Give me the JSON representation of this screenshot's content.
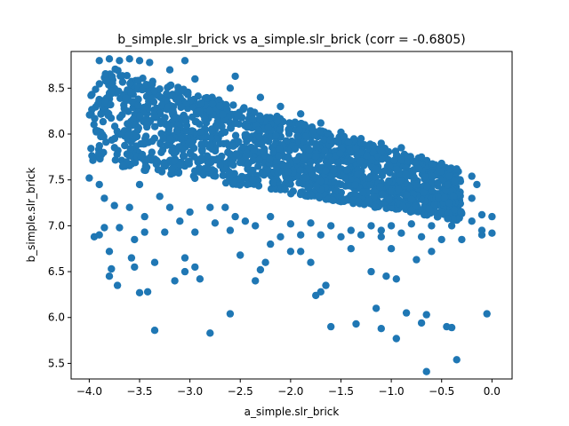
{
  "chart_data": {
    "type": "scatter",
    "title": "b_simple.slr_brick vs a_simple.slr_brick (corr = -0.6805)",
    "xlabel": "a_simple.slr_brick",
    "ylabel": "b_simple.slr_brick",
    "xlim": [
      -4.18,
      0.2
    ],
    "ylim": [
      5.33,
      8.9
    ],
    "xticks": [
      -4.0,
      -3.5,
      -3.0,
      -2.5,
      -2.0,
      -1.5,
      -1.0,
      -0.5,
      0.0
    ],
    "xtick_labels": [
      "−4.0",
      "−3.5",
      "−3.0",
      "−2.5",
      "−2.0",
      "−1.5",
      "−1.0",
      "−0.5",
      "0.0"
    ],
    "yticks": [
      5.5,
      6.0,
      6.5,
      7.0,
      7.5,
      8.0,
      8.5
    ],
    "ytick_labels": [
      "5.5",
      "6.0",
      "6.5",
      "7.0",
      "7.5",
      "8.0",
      "8.5"
    ],
    "grid": false,
    "marker_color": "#1f77b4",
    "correlation": -0.6805,
    "cluster": {
      "x_range": [
        -4.0,
        -0.3
      ],
      "upper_line": {
        "x": [
          -4.0,
          -0.3
        ],
        "y": [
          8.8,
          7.6
        ]
      },
      "lower_line": {
        "x": [
          -4.0,
          -0.3
        ],
        "y": [
          7.7,
          7.05
        ]
      }
    },
    "series": [
      {
        "points": [
          [
            -3.9,
            8.8
          ],
          [
            -3.8,
            8.82
          ],
          [
            -3.7,
            8.8
          ],
          [
            -3.6,
            8.82
          ],
          [
            -3.5,
            8.8
          ],
          [
            -3.4,
            8.78
          ],
          [
            -3.05,
            8.8
          ],
          [
            -3.2,
            8.7
          ],
          [
            -2.95,
            8.6
          ],
          [
            -2.55,
            8.63
          ],
          [
            -2.6,
            8.5
          ],
          [
            -2.3,
            8.4
          ],
          [
            -2.1,
            8.3
          ],
          [
            -1.9,
            8.22
          ],
          [
            -1.7,
            8.12
          ],
          [
            -1.5,
            8.02
          ],
          [
            -1.3,
            7.95
          ],
          [
            -1.1,
            7.9
          ],
          [
            -0.9,
            7.85
          ],
          [
            -0.7,
            7.75
          ],
          [
            -0.5,
            7.68
          ],
          [
            -0.35,
            7.62
          ],
          [
            -0.2,
            7.54
          ],
          [
            -4.0,
            7.52
          ],
          [
            -3.9,
            7.45
          ],
          [
            -3.85,
            7.3
          ],
          [
            -3.75,
            7.22
          ],
          [
            -3.6,
            7.2
          ],
          [
            -3.5,
            7.45
          ],
          [
            -3.45,
            7.1
          ],
          [
            -3.3,
            7.32
          ],
          [
            -3.2,
            7.2
          ],
          [
            -3.1,
            7.05
          ],
          [
            -3.0,
            7.15
          ],
          [
            -2.95,
            6.93
          ],
          [
            -2.8,
            7.2
          ],
          [
            -2.75,
            7.03
          ],
          [
            -2.65,
            7.2
          ],
          [
            -2.55,
            7.1
          ],
          [
            -2.45,
            7.05
          ],
          [
            -2.35,
            7.0
          ],
          [
            -2.2,
            7.1
          ],
          [
            -2.1,
            6.88
          ],
          [
            -2.0,
            7.02
          ],
          [
            -1.9,
            6.9
          ],
          [
            -1.8,
            7.03
          ],
          [
            -1.7,
            6.9
          ],
          [
            -1.6,
            7.0
          ],
          [
            -1.5,
            6.88
          ],
          [
            -1.4,
            6.95
          ],
          [
            -1.3,
            6.9
          ],
          [
            -1.2,
            7.0
          ],
          [
            -1.1,
            6.88
          ],
          [
            -1.0,
            7.0
          ],
          [
            -0.9,
            6.92
          ],
          [
            -0.8,
            7.02
          ],
          [
            -0.7,
            6.88
          ],
          [
            -0.6,
            7.0
          ],
          [
            -0.5,
            6.85
          ],
          [
            -0.4,
            7.0
          ],
          [
            -0.3,
            6.85
          ],
          [
            -0.2,
            7.05
          ],
          [
            -0.1,
            7.12
          ],
          [
            0.0,
            7.1
          ],
          [
            -0.1,
            6.95
          ],
          [
            -0.1,
            6.9
          ],
          [
            0.0,
            6.92
          ],
          [
            -0.2,
            7.3
          ],
          [
            -0.15,
            7.45
          ],
          [
            -3.9,
            6.9
          ],
          [
            -3.85,
            6.98
          ],
          [
            -3.8,
            6.72
          ],
          [
            -3.78,
            6.53
          ],
          [
            -3.8,
            6.45
          ],
          [
            -3.72,
            6.35
          ],
          [
            -3.58,
            6.65
          ],
          [
            -3.55,
            6.55
          ],
          [
            -3.55,
            6.85
          ],
          [
            -3.45,
            6.93
          ],
          [
            -3.5,
            6.27
          ],
          [
            -3.42,
            6.28
          ],
          [
            -3.35,
            6.6
          ],
          [
            -3.35,
            5.86
          ],
          [
            -3.25,
            6.93
          ],
          [
            -3.15,
            6.4
          ],
          [
            -3.05,
            6.65
          ],
          [
            -3.05,
            6.5
          ],
          [
            -2.95,
            6.55
          ],
          [
            -2.9,
            6.42
          ],
          [
            -2.8,
            5.83
          ],
          [
            -2.6,
            6.04
          ],
          [
            -2.5,
            6.68
          ],
          [
            -2.35,
            6.4
          ],
          [
            -2.3,
            6.52
          ],
          [
            -2.25,
            6.6
          ],
          [
            -2.2,
            6.8
          ],
          [
            -2.0,
            6.72
          ],
          [
            -1.9,
            6.72
          ],
          [
            -1.8,
            6.6
          ],
          [
            -1.75,
            6.24
          ],
          [
            -1.7,
            6.28
          ],
          [
            -1.65,
            6.35
          ],
          [
            -1.6,
            5.9
          ],
          [
            -1.4,
            6.75
          ],
          [
            -1.35,
            5.93
          ],
          [
            -1.2,
            6.5
          ],
          [
            -1.15,
            6.1
          ],
          [
            -1.1,
            5.88
          ],
          [
            -1.05,
            6.45
          ],
          [
            -0.95,
            6.42
          ],
          [
            -0.95,
            5.77
          ],
          [
            -0.85,
            6.05
          ],
          [
            -0.75,
            6.63
          ],
          [
            -0.7,
            5.94
          ],
          [
            -0.65,
            6.03
          ],
          [
            -0.6,
            6.72
          ],
          [
            -0.45,
            5.9
          ],
          [
            -0.4,
            5.89
          ],
          [
            -0.35,
            5.54
          ],
          [
            -0.65,
            5.41
          ],
          [
            -0.05,
            6.04
          ],
          [
            -1.1,
            6.95
          ],
          [
            -1.0,
            6.75
          ],
          [
            -2.6,
            6.95
          ],
          [
            -3.7,
            6.98
          ],
          [
            -3.95,
            6.88
          ]
        ]
      }
    ]
  }
}
